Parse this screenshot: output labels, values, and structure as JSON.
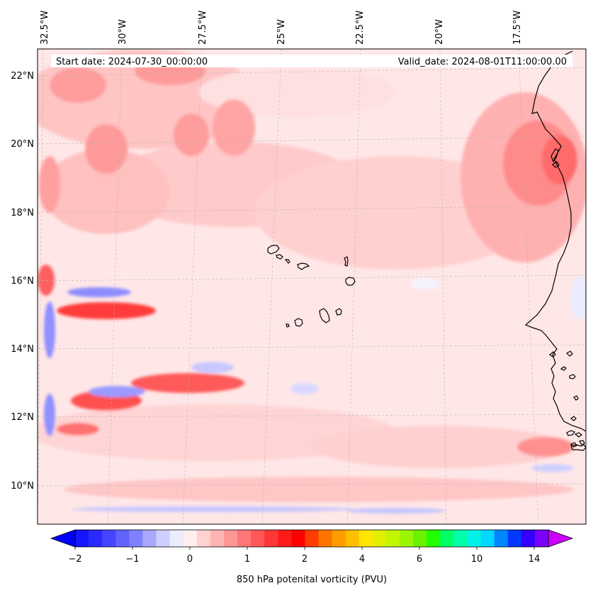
{
  "map": {
    "start_label": "Start date: 2024-07-30_00:00:00",
    "valid_label": "Valid_date: 2024-08-01T11:00:00.00",
    "lon_labels": [
      "32.5°W",
      "30°W",
      "27.5°W",
      "25°W",
      "22.5°W",
      "20°W",
      "17.5°W"
    ],
    "lat_labels": [
      "22°N",
      "20°N",
      "18°N",
      "16°N",
      "14°N",
      "12°N",
      "10°N"
    ],
    "colorbar_title": "850 hPa potenital vorticity (PVU)",
    "colorbar_ticks": [
      "−2",
      "−1",
      "0",
      "1",
      "2",
      "4",
      "6",
      "10",
      "14"
    ],
    "palette": {
      "below": "#0000ff",
      "above": "#cc00ff",
      "levels": [
        "#1515ff",
        "#2a2aff",
        "#4545ff",
        "#6262ff",
        "#8080ff",
        "#a8a8ff",
        "#cfcfff",
        "#ececff",
        "#ffeeee",
        "#ffd2d2",
        "#ffb4b4",
        "#ff9696",
        "#ff7676",
        "#ff5757",
        "#ff3636",
        "#ff1a1a",
        "#ff0000",
        "#ff3d00",
        "#ff7400",
        "#ff9c00",
        "#ffbf00",
        "#ffe500",
        "#e0f000",
        "#c2f500",
        "#9bf500",
        "#6af200",
        "#1fff00",
        "#00ff66",
        "#00ffaa",
        "#00f2e6",
        "#00d8ff",
        "#0086ff",
        "#0038ff",
        "#3300ff",
        "#7d00ff"
      ]
    }
  }
}
